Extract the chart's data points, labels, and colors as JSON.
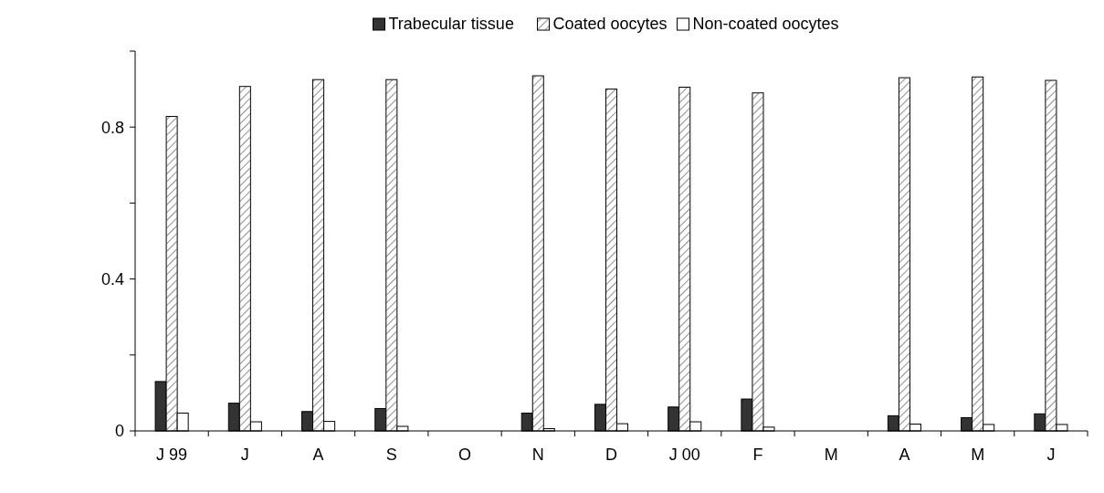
{
  "chart_data": {
    "type": "bar",
    "categories": [
      "J 99",
      "J",
      "A",
      "S",
      "O",
      "N",
      "D",
      "J 00",
      "F",
      "M",
      "A",
      "M",
      "J"
    ],
    "series": [
      {
        "name": "Trabecular tissue",
        "color": "#333333",
        "values": [
          0.13,
          0.073,
          0.051,
          0.059,
          null,
          0.047,
          0.07,
          0.063,
          0.084,
          null,
          0.04,
          0.035,
          0.045
        ]
      },
      {
        "name": "Coated oocytes",
        "color": "#ffffff",
        "values": [
          0.828,
          0.907,
          0.925,
          0.925,
          null,
          0.935,
          0.9,
          0.905,
          0.89,
          null,
          0.93,
          0.932,
          0.923
        ]
      },
      {
        "name": "Non-coated oocytes",
        "color": "#ffffff",
        "values": [
          0.047,
          0.024,
          0.025,
          0.012,
          null,
          0.006,
          0.019,
          0.024,
          0.01,
          null,
          0.018,
          0.017,
          0.017
        ]
      }
    ],
    "ylim": [
      0,
      1
    ],
    "yticks": [
      0,
      {
        "value": 0.2,
        "label": null
      },
      0.4,
      {
        "value": 0.6,
        "label": null
      },
      0.8,
      {
        "value": 1,
        "label": null
      }
    ],
    "legend": "top",
    "grid": false
  }
}
